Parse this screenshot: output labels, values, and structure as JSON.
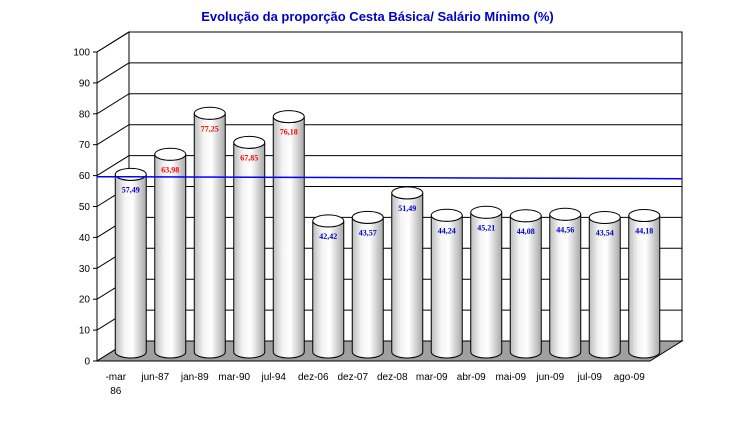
{
  "chart_data": {
    "type": "bar",
    "style": "3d-cylinder",
    "title": "Evolução da proporção Cesta Básica/ Salário Mínimo (%)",
    "categories": [
      "-mar 86",
      "jun-87",
      "jan-89",
      "mar-90",
      "jul-94",
      "dez-06",
      "dez-07",
      "dez-08",
      "mar-09",
      "abr-09",
      "mai-09",
      "jun-09",
      "jul-09",
      "ago-09"
    ],
    "values": [
      57.49,
      63.98,
      77.25,
      67.85,
      76.18,
      42.42,
      43.57,
      51.49,
      44.24,
      45.21,
      44.08,
      44.56,
      43.54,
      44.18
    ],
    "data_labels": [
      "57,49",
      "63,98",
      "77,25",
      "67,85",
      "76,18",
      "42,42",
      "43,57",
      "51,49",
      "44,24",
      "45,21",
      "44,08",
      "44,56",
      "43,54",
      "44,18"
    ],
    "ylim": [
      0,
      100
    ],
    "yticks": [
      0,
      10,
      20,
      30,
      40,
      50,
      60,
      70,
      80,
      90,
      100
    ],
    "reference_line": 59,
    "grid": true,
    "legend": "none",
    "colors": {
      "title": "#0000cc",
      "label_high": "#ff0000",
      "label_low": "#0000cc",
      "reference_line": "#0000ff",
      "bar_fill": "#e6e6e6",
      "floor": "#a0a0a0"
    }
  }
}
